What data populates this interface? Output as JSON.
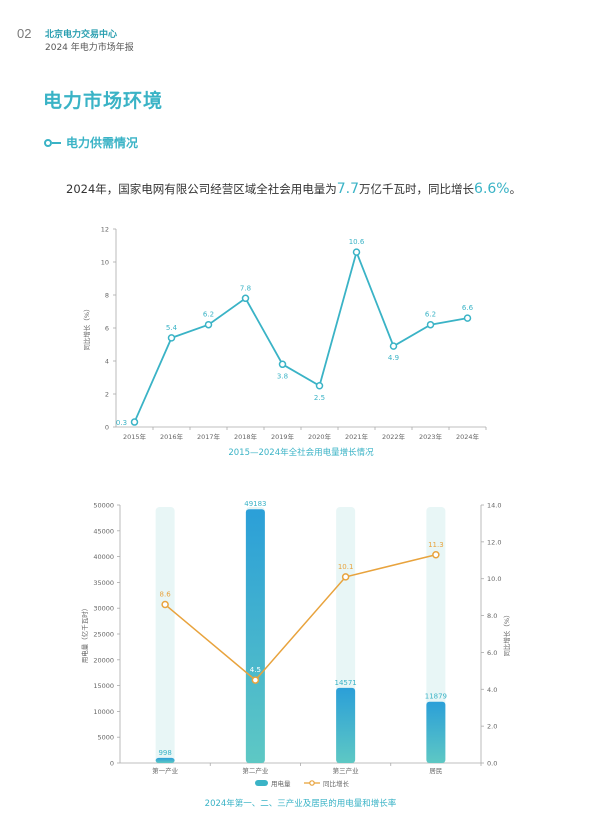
{
  "header": {
    "page_number": "02",
    "org": "北京电力交易中心",
    "report": "2024 年电力市场年报"
  },
  "section_title": "电力市场环境",
  "subsection_title": "电力供需情况",
  "summary": {
    "prefix": "2024年，国家电网有限公司经营区域全社会用电量为",
    "value": "7.7",
    "middle": "万亿千瓦时，同比增长",
    "growth": "6.6%",
    "suffix": "。"
  },
  "colors": {
    "accent": "#3ab3c6",
    "line_orange": "#e8a33d",
    "bar_top": "#2b9fd8",
    "bar_bottom": "#5ec8c4",
    "bg_bar": "#e8f6f6"
  },
  "chart_data": [
    {
      "type": "line",
      "title": "2015—2024年全社会用电量增长情况",
      "ylabel": "同比增长（%）",
      "ylim": [
        0,
        12
      ],
      "yticks": [
        "0",
        "2",
        "4",
        "6",
        "8",
        "10",
        "12"
      ],
      "x": [
        "2015年",
        "2016年",
        "2017年",
        "2018年",
        "2019年",
        "2020年",
        "2021年",
        "2022年",
        "2023年",
        "2024年"
      ],
      "values": [
        0.3,
        5.4,
        6.2,
        7.8,
        3.8,
        2.5,
        10.6,
        4.9,
        6.2,
        6.6
      ],
      "labels": [
        "0.3",
        "5.4",
        "6.2",
        "7.8",
        "3.8",
        "2.5",
        "10.6",
        "4.9",
        "6.2",
        "6.6"
      ]
    },
    {
      "type": "bar",
      "title": "2024年第一、二、三产业及居民的用电量和增长率",
      "ylabel": "用电量（亿千瓦时）",
      "y2label": "同比增长（%）",
      "ylim": [
        0,
        50000
      ],
      "y2lim": [
        0,
        14
      ],
      "yticks": [
        "0",
        "5000",
        "10000",
        "15000",
        "20000",
        "25000",
        "30000",
        "35000",
        "40000",
        "45000",
        "50000"
      ],
      "y2ticks": [
        "0.0",
        "2.0",
        "4.0",
        "6.0",
        "8.0",
        "10.0",
        "12.0",
        "14.0"
      ],
      "categories": [
        "第一产业",
        "第二产业",
        "第三产业",
        "居民"
      ],
      "series": [
        {
          "name": "用电量",
          "values": [
            998,
            49183,
            14571,
            11879
          ],
          "labels": [
            "998",
            "49183",
            "14571",
            "11879"
          ]
        },
        {
          "name": "同比增长",
          "values": [
            8.6,
            4.5,
            10.1,
            11.3
          ],
          "labels": [
            "8.6",
            "4.5",
            "10.1",
            "11.3"
          ]
        }
      ]
    }
  ]
}
